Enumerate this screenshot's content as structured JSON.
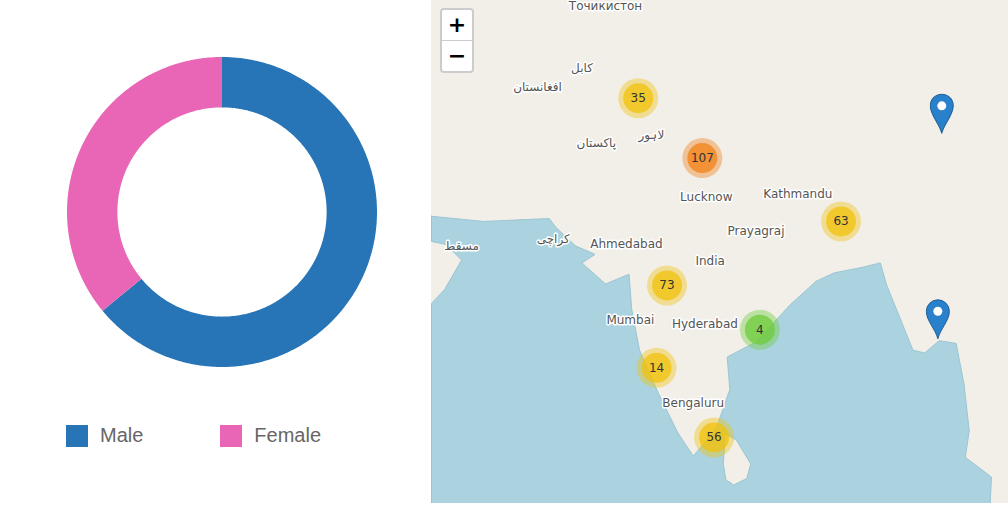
{
  "chart_data": [
    {
      "type": "donut",
      "categories": [
        "Male",
        "Female"
      ],
      "values": [
        64,
        36
      ],
      "colors": [
        "#2775b6",
        "#e966b6"
      ],
      "legend": "bottom"
    },
    {
      "type": "map",
      "zoom_controls": [
        "+",
        "−"
      ],
      "bounds": [
        [
          57.5,
          4.5
        ],
        [
          101.6,
          39.4
        ]
      ],
      "water": [
        [
          57,
          25.6
        ],
        [
          61.5,
          25.2
        ],
        [
          66.5,
          25.4
        ],
        [
          67.0,
          24.8
        ],
        [
          68.5,
          23.5
        ],
        [
          70.0,
          22.9
        ],
        [
          69.0,
          22.3
        ],
        [
          70.8,
          20.8
        ],
        [
          72.6,
          21.5
        ],
        [
          72.8,
          19.0
        ],
        [
          73.4,
          16.0
        ],
        [
          74.8,
          12.9
        ],
        [
          76.3,
          9.9
        ],
        [
          77.5,
          8.1
        ],
        [
          78.2,
          8.9
        ],
        [
          79.3,
          10.3
        ],
        [
          80.3,
          13.1
        ],
        [
          80.1,
          15.5
        ],
        [
          82.3,
          16.6
        ],
        [
          84.9,
          19.3
        ],
        [
          86.9,
          21.0
        ],
        [
          88.3,
          21.6
        ],
        [
          90.5,
          22.0
        ],
        [
          91.8,
          22.3
        ],
        [
          92.3,
          20.7
        ],
        [
          94.3,
          16.0
        ],
        [
          95.2,
          15.8
        ],
        [
          96.3,
          16.7
        ],
        [
          97.6,
          16.5
        ],
        [
          98.2,
          13.5
        ],
        [
          98.6,
          10.0
        ],
        [
          98.3,
          8.0
        ],
        [
          100.3,
          6.5
        ],
        [
          100.2,
          4.5
        ],
        [
          100.2,
          0
        ],
        [
          57,
          0
        ],
        [
          57,
          18.9
        ],
        [
          58.5,
          20.4
        ],
        [
          59.8,
          22.5
        ],
        [
          58.6,
          23.6
        ],
        [
          57,
          23.9
        ]
      ],
      "islands": [
        [
          [
            79.9,
            9.8
          ],
          [
            80.8,
            9.3
          ],
          [
            81.9,
            7.5
          ],
          [
            81.6,
            6.4
          ],
          [
            80.6,
            5.9
          ],
          [
            80.0,
            6.3
          ],
          [
            79.8,
            7.5
          ],
          [
            79.9,
            8.9
          ]
        ]
      ],
      "clusters": {
        "values": [
          35,
          107,
          63,
          73,
          4,
          14,
          56
        ],
        "lon": [
          73.3,
          78.2,
          88.8,
          75.5,
          82.6,
          74.7,
          79.1
        ],
        "lat": [
          33.4,
          29.5,
          25.2,
          20.7,
          17.5,
          14.7,
          9.5
        ],
        "colors": [
          "#f0c20c",
          "#f18017",
          "#f0c20c",
          "#f0c20c",
          "#6ecc39",
          "#f0c20c",
          "#f0c20c"
        ]
      },
      "markers": {
        "lon": [
          96.5,
          96.2
        ],
        "lat": [
          31.1,
          16.8
        ]
      },
      "places": [
        {
          "name": "Точикистон",
          "lon": 70.8,
          "lat": 39.1
        },
        {
          "name": "كابل",
          "lon": 69.0,
          "lat": 35.3
        },
        {
          "name": "افغانستان",
          "lon": 65.6,
          "lat": 34.1
        },
        {
          "name": "پاکستان",
          "lon": 70.1,
          "lat": 30.5
        },
        {
          "name": "لاہور",
          "lon": 74.3,
          "lat": 31.0
        },
        {
          "name": "Lucknow",
          "lon": 78.5,
          "lat": 26.85
        },
        {
          "name": "Kathmandu",
          "lon": 85.5,
          "lat": 27.1
        },
        {
          "name": "Prayagraj",
          "lon": 82.3,
          "lat": 24.5
        },
        {
          "name": "Ahmedabad",
          "lon": 72.4,
          "lat": 23.6
        },
        {
          "name": "کراچی",
          "lon": 66.8,
          "lat": 24.0
        },
        {
          "name": "مسقط",
          "lon": 59.8,
          "lat": 23.5
        },
        {
          "name": "India",
          "lon": 78.8,
          "lat": 22.4
        },
        {
          "name": "Mumbai",
          "lon": 72.7,
          "lat": 18.2
        },
        {
          "name": "Hyderabad",
          "lon": 78.4,
          "lat": 17.9
        },
        {
          "name": "Bengaluru",
          "lon": 77.5,
          "lat": 12.1
        }
      ]
    }
  ]
}
